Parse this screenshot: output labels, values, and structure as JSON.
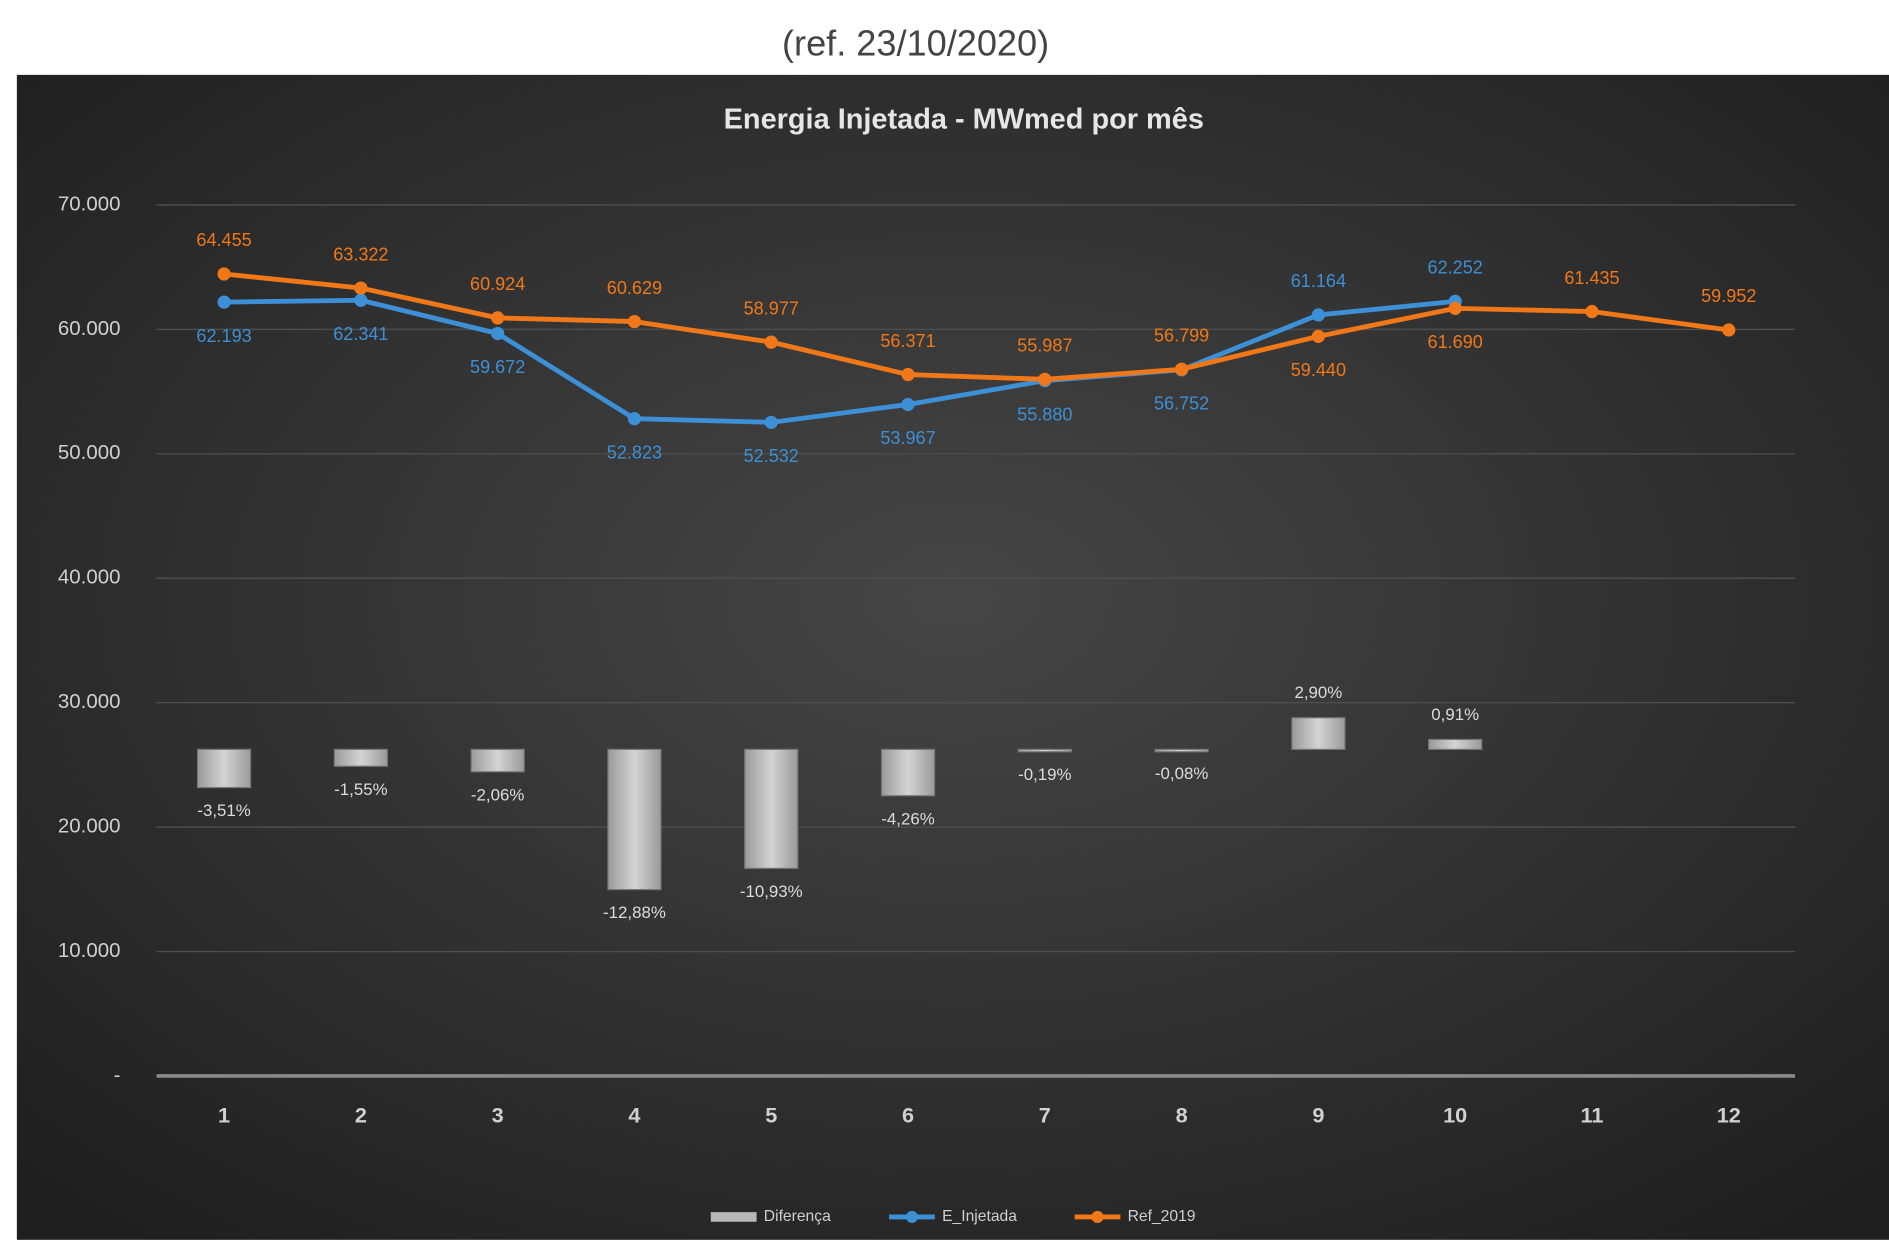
{
  "chart_data": {
    "type": "combo",
    "caption": "(ref. 23/10/2020)",
    "title": "Energia Injetada - MWmed por mês",
    "categories": [
      "1",
      "2",
      "3",
      "4",
      "5",
      "6",
      "7",
      "8",
      "9",
      "10",
      "11",
      "12"
    ],
    "ylim": [
      0,
      70000
    ],
    "yticks": [
      {
        "value": 0,
        "label": "-"
      },
      {
        "value": 10000,
        "label": "10.000"
      },
      {
        "value": 20000,
        "label": "20.000"
      },
      {
        "value": 30000,
        "label": "30.000"
      },
      {
        "value": 40000,
        "label": "40.000"
      },
      {
        "value": 50000,
        "label": "50.000"
      },
      {
        "value": 60000,
        "label": "60.000"
      },
      {
        "value": 70000,
        "label": "70.000"
      }
    ],
    "y2lim": [
      -30,
      50
    ],
    "grid": true,
    "legend": "bottom",
    "series": [
      {
        "name": "Diferença",
        "type": "bar",
        "axis": "y2",
        "color": "#b8b8b8",
        "values": [
          -3.51,
          -1.55,
          -2.06,
          -12.88,
          -10.93,
          -4.26,
          -0.19,
          -0.08,
          2.9,
          0.91,
          null,
          null
        ],
        "value_labels": [
          "-3,51%",
          "-1,55%",
          "-2,06%",
          "-12,88%",
          "-10,93%",
          "-4,26%",
          "-0,19%",
          "-0,08%",
          "2,90%",
          "0,91%",
          null,
          null
        ]
      },
      {
        "name": "E_Injetada",
        "type": "line",
        "color": "#3d8fd6",
        "values": [
          62193,
          62341,
          59672,
          52823,
          52532,
          53967,
          55880,
          56752,
          61164,
          62252,
          null,
          null
        ],
        "value_labels": [
          "62.193",
          "62.341",
          "59.672",
          "52.823",
          "52.532",
          "53.967",
          "55.880",
          "56.752",
          "61.164",
          "62.252",
          null,
          null
        ]
      },
      {
        "name": "Ref_2019",
        "type": "line",
        "color": "#f07818",
        "values": [
          64455,
          63322,
          60924,
          60629,
          58977,
          56371,
          55987,
          56799,
          59440,
          61690,
          61435,
          59952
        ],
        "value_labels": [
          "64.455",
          "63.322",
          "60.924",
          "60.629",
          "58.977",
          "56.371",
          "55.987",
          "56.799",
          "59.440",
          "61.690",
          "61.435",
          "59.952"
        ]
      }
    ]
  }
}
